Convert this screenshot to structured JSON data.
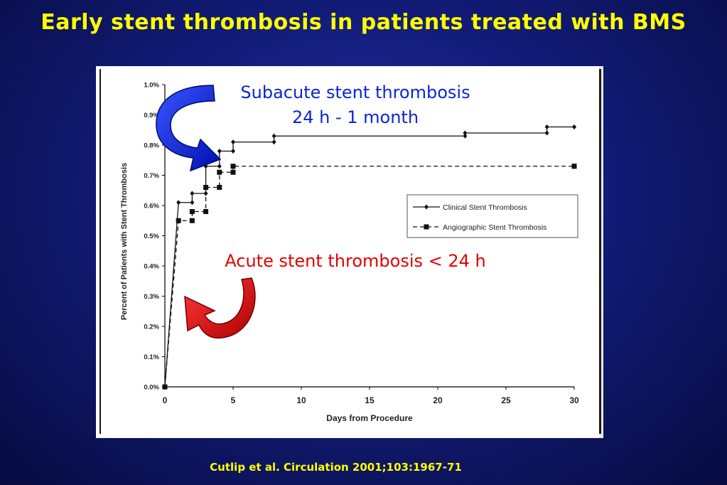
{
  "slide": {
    "title": "Early stent thrombosis in patients treated with BMS",
    "citation": "Cutlip et al. Circulation 2001;103:1967-71"
  },
  "annotations": {
    "subacute_line1": "Subacute stent thrombosis",
    "subacute_line2": "24 h - 1 month",
    "acute": "Acute stent thrombosis < 24 h"
  },
  "colors": {
    "title": "#ffff00",
    "subacute_arrow": "#0a26d6",
    "acute_arrow": "#e30000",
    "series": "#000000"
  },
  "icons": {
    "subacute_arrow": "curved-arrow-icon",
    "acute_arrow": "curved-arrow-icon"
  },
  "chart_data": {
    "type": "line",
    "step": true,
    "xlabel": "Days from Procedure",
    "ylabel": "Percent of Patients with Stent Thrombosis",
    "xlim": [
      0,
      30
    ],
    "ylim": [
      0.0,
      1.0
    ],
    "x_ticks": [
      0,
      5,
      10,
      15,
      20,
      25,
      30
    ],
    "x_tick_labels": [
      "0",
      "5",
      "10",
      "15",
      "20",
      "25",
      "30"
    ],
    "y_ticks": [
      0.0,
      0.1,
      0.2,
      0.3,
      0.4,
      0.5,
      0.6,
      0.7,
      0.8,
      0.9,
      1.0
    ],
    "y_tick_labels": [
      "0.0%",
      "0.1%",
      "0.2%",
      "0.3%",
      "0.4%",
      "0.5%",
      "0.6%",
      "0.7%",
      "0.8%",
      "0.9%",
      "1.0%"
    ],
    "grid": false,
    "legend_position": "right",
    "series": [
      {
        "name": "Clinical Stent Thrombosis",
        "line_style": "solid",
        "marker": "diamond",
        "points": [
          [
            0,
            0.0
          ],
          [
            1,
            0.61
          ],
          [
            2,
            0.64
          ],
          [
            3,
            0.73
          ],
          [
            4,
            0.78
          ],
          [
            5,
            0.81
          ],
          [
            8,
            0.83
          ],
          [
            22,
            0.84
          ],
          [
            28,
            0.86
          ],
          [
            30,
            0.86
          ]
        ]
      },
      {
        "name": "Angiographic Stent Thrombosis",
        "line_style": "dashed",
        "marker": "square",
        "points": [
          [
            0,
            0.0
          ],
          [
            1,
            0.55
          ],
          [
            2,
            0.58
          ],
          [
            3,
            0.66
          ],
          [
            4,
            0.71
          ],
          [
            5,
            0.73
          ],
          [
            30,
            0.73
          ]
        ]
      }
    ]
  }
}
